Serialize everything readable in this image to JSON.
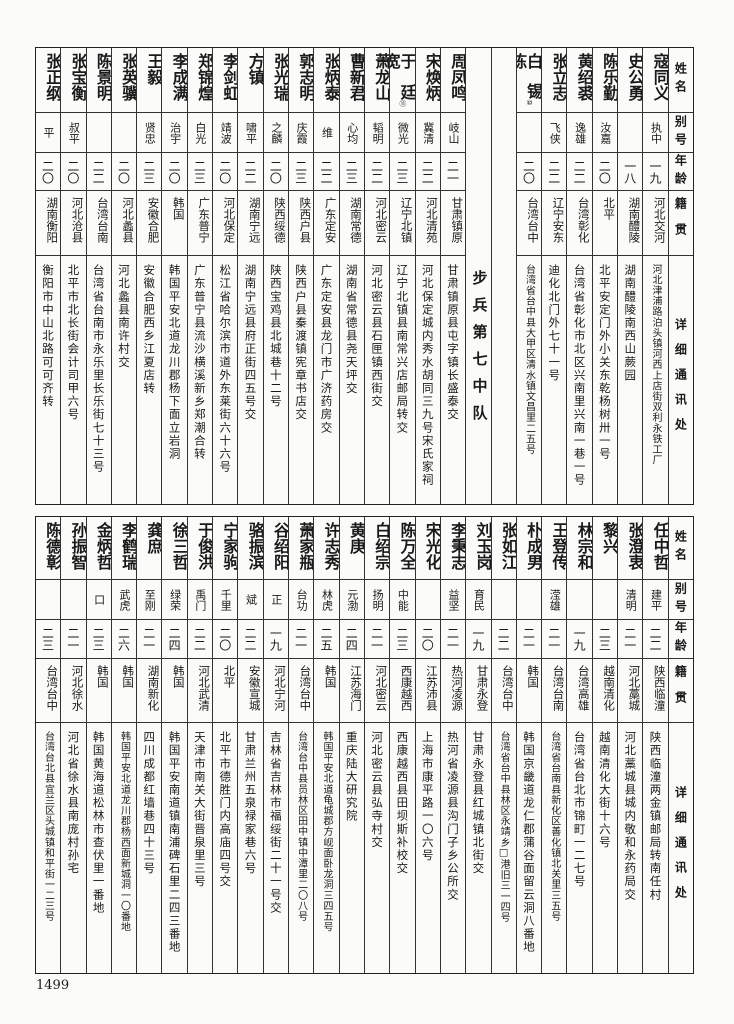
{
  "headers": {
    "name": "姓名",
    "alias": "别号",
    "age": "年龄",
    "origin": "籍贯",
    "address": "详细通讯处"
  },
  "top": {
    "group1": [
      {
        "name": "寇同义",
        "alias": "执中",
        "age": "一九",
        "origin": "河北交河",
        "address": "河北津浦路泊头镇河西上店街双利永铁工厂"
      },
      {
        "name": "史公勇",
        "alias": "",
        "age": "一八",
        "origin": "湖南醴陵",
        "address": "湖南醴陵南西山蕨园"
      },
      {
        "name": "陈乐勤",
        "alias": "汝嘉",
        "age": "二〇",
        "origin": "北平",
        "address": "北平安定门外小关东乾杨树卅一号"
      },
      {
        "name": "黄绍裘",
        "alias": "逸雄",
        "age": "二二",
        "origin": "台湾彰化",
        "address": "台湾省彰化市北区兴南里兴南一巷一号"
      },
      {
        "name": "张立志",
        "alias": "飞侠",
        "age": "二二",
        "origin": "辽宁安东",
        "address": "迪化北门外七十一号"
      },
      {
        "name": "白锡栋",
        "note": "⑩",
        "alias": "",
        "age": "二〇",
        "origin": "台湾台中",
        "address": "台湾省台中县大甲区清水镇文昌里二五号"
      }
    ],
    "section_label": "步兵第七中队",
    "group2": [
      {
        "name": "周凤鸣",
        "alias": "岐山",
        "age": "二一",
        "origin": "甘肃镇原",
        "address": "甘肃镇原县屯字镇长盛泰交"
      },
      {
        "name": "宋焕炳",
        "alias": "冀清",
        "age": "二二",
        "origin": "河北清苑",
        "address": "河北保定城内秀水胡同三九号宋氏家祠"
      },
      {
        "name": "于廷宽",
        "note": "⑪",
        "alias": "微光",
        "age": "二三",
        "origin": "辽宁北镇",
        "address": "辽宁北镇县南常兴店邮局转交"
      },
      {
        "name": "萧龙山",
        "alias": "韬明",
        "age": "二二",
        "origin": "河北密云",
        "address": "河北密云县石匣镇西街交"
      },
      {
        "name": "曹新君",
        "alias": "心均",
        "age": "二三",
        "origin": "湖南常德",
        "address": "湖南省常德县尧天坪交"
      },
      {
        "name": "张炳泰",
        "alias": "维",
        "age": "二二",
        "origin": "广东定安",
        "address": "广东定安县龙门市广济药房交"
      },
      {
        "name": "郭志明",
        "alias": "庆霞",
        "age": "二三",
        "origin": "陕西户县",
        "address": "陕西户县秦渡镇宪章书店交"
      },
      {
        "name": "张光瑞",
        "alias": "之麟",
        "age": "二〇",
        "origin": "陕西绥德",
        "address": "陕西宝鸡县北城巷十二号"
      },
      {
        "name": "方镇",
        "alias": "啸平",
        "age": "二二",
        "origin": "湖南宁远",
        "address": "湖南宁远县府正街四五号交"
      },
      {
        "name": "李剑虹",
        "alias": "靖波",
        "age": "二〇",
        "origin": "河北保定",
        "address": "松江省哈尔滨市道外东莱街六十六号"
      },
      {
        "name": "郑锦煌",
        "alias": "白光",
        "age": "二三",
        "origin": "广东普宁",
        "address": "广东普宁县流沙横溪新乡郑潮合转"
      },
      {
        "name": "李成满",
        "alias": "治宇",
        "age": "二〇",
        "origin": "韩国",
        "address": "韩国平安北道龙川郡杨下面立岩洞"
      },
      {
        "name": "王毅",
        "alias": "贤忠",
        "age": "二三",
        "origin": "安徽合肥",
        "address": "安徽合肥西乡江夏店转"
      },
      {
        "name": "张英骥",
        "alias": "",
        "age": "二〇",
        "origin": "河北蠡县",
        "address": "河北蠡县南许村交"
      },
      {
        "name": "陈景明",
        "alias": "",
        "age": "二二",
        "origin": "台湾台南",
        "address": "台湾省台南市永乐里长乐街七十三号"
      },
      {
        "name": "张宝衡",
        "alias": "叔平",
        "age": "二〇",
        "origin": "河北沧县",
        "address": "北平市北长街会计司甲六号"
      },
      {
        "name": "张正纲",
        "alias": "平",
        "age": "二〇",
        "origin": "湖南衡阳",
        "address": "衡阳市中山北路可可齐转"
      }
    ]
  },
  "bottom": {
    "rows": [
      {
        "name": "任中哲",
        "alias": "建平",
        "age": "二二",
        "origin": "陕西临潼",
        "address": "陕西临潼两金镇邮局转南任村"
      },
      {
        "name": "张澄衷",
        "alias": "清明",
        "age": "二一",
        "origin": "河北藁城",
        "address": "河北藁城县城内敬和永药局交"
      },
      {
        "name": "黎兴",
        "alias": "",
        "age": "二三",
        "origin": "越南清化",
        "address": "越南清化大街十六号"
      },
      {
        "name": "林宗和",
        "alias": "",
        "age": "一九",
        "origin": "台湾高雄",
        "address": "台湾省台北市锦町一二七号"
      },
      {
        "name": "王登传",
        "alias": "滢雄",
        "age": "二一",
        "origin": "台湾台南",
        "address": "台湾省台南县新化区善化镇北关里三五号"
      },
      {
        "name": "朴成男",
        "alias": "",
        "age": "二一",
        "origin": "韩国",
        "address": "韩国京畿道龙仁郡蒲谷面留云洞八番地"
      },
      {
        "name": "张如江",
        "alias": "",
        "age": "二二",
        "origin": "台湾台中",
        "address": "台湾省台中县林区永靖乡□港旧三一四号"
      },
      {
        "name": "刘玉岗",
        "alias": "育民",
        "age": "一九",
        "origin": "甘肃永登",
        "address": "甘肃永登县红城镇北街交"
      },
      {
        "name": "李秉志",
        "alias": "益坚",
        "age": "二一",
        "origin": "热河凌源",
        "address": "热河省凌源县沟门子乡公所交"
      },
      {
        "name": "宋光化",
        "alias": "",
        "age": "二〇",
        "origin": "江苏沛县",
        "address": "上海市康平路一〇六号"
      },
      {
        "name": "陈万全",
        "alias": "中能",
        "age": "二三",
        "origin": "西康越西",
        "address": "西康越西县田坝斯补校交"
      },
      {
        "name": "白绍宗",
        "alias": "扬明",
        "age": "二一",
        "origin": "河北密云",
        "address": "河北密云县弘寺村交"
      },
      {
        "name": "黄庚",
        "alias": "元渤",
        "age": "二四",
        "origin": "江苏海门",
        "address": "重庆陆大研究院"
      },
      {
        "name": "许志秀",
        "alias": "林虎",
        "age": "二五",
        "origin": "韩国",
        "address": "韩国平安北道龟城郡方岘面卧龙洞三四五号"
      },
      {
        "name": "萧家瓶",
        "alias": "台功",
        "age": "二一",
        "origin": "台湾台中",
        "address": "台湾台中县员林区田中镇中潭里二〇八号"
      },
      {
        "name": "谷绍阳",
        "alias": "正",
        "age": "一九",
        "origin": "河北宁河",
        "address": "吉林省吉林市福绥街二十一号交"
      },
      {
        "name": "骆振滨",
        "alias": "斌",
        "age": "二二",
        "origin": "安徽宣城",
        "address": "甘肃兰州五泉禄家巷六号"
      },
      {
        "name": "宁家驹",
        "alias": "千里",
        "age": "二〇",
        "origin": "北平",
        "address": "北平市德胜门内高庙四号交"
      },
      {
        "name": "于俊洪",
        "alias": "禹门",
        "age": "二二",
        "origin": "河北武清",
        "address": "天津市南关大街晋泉里三号"
      },
      {
        "name": "徐三哲",
        "alias": "绿荣",
        "age": "二四",
        "origin": "韩国",
        "address": "韩国平安南道镇南浦碑石里二四三番地"
      },
      {
        "name": "龚庶",
        "alias": "至刚",
        "age": "二一",
        "origin": "湖南新化",
        "address": "四川成都红墙巷四十三号"
      },
      {
        "name": "李鹤瑞",
        "alias": "武虎",
        "age": "二六",
        "origin": "韩国",
        "address": "韩国平安北道龙川郡杨西面新城洞一〇番地"
      },
      {
        "name": "金炳哲",
        "alias": "口",
        "age": "二三",
        "origin": "韩国",
        "address": "韩国黄海道松林市查伏里一番地"
      },
      {
        "name": "孙振智",
        "alias": "",
        "age": "二一",
        "origin": "河北徐水",
        "address": "河北省徐水县南庞村孙宅"
      },
      {
        "name": "陈德彰",
        "alias": "",
        "age": "二三",
        "origin": "台湾台中",
        "address": "台湾台北县宜兰区头城镇和平街一二三号"
      }
    ]
  },
  "page_number": "1499"
}
